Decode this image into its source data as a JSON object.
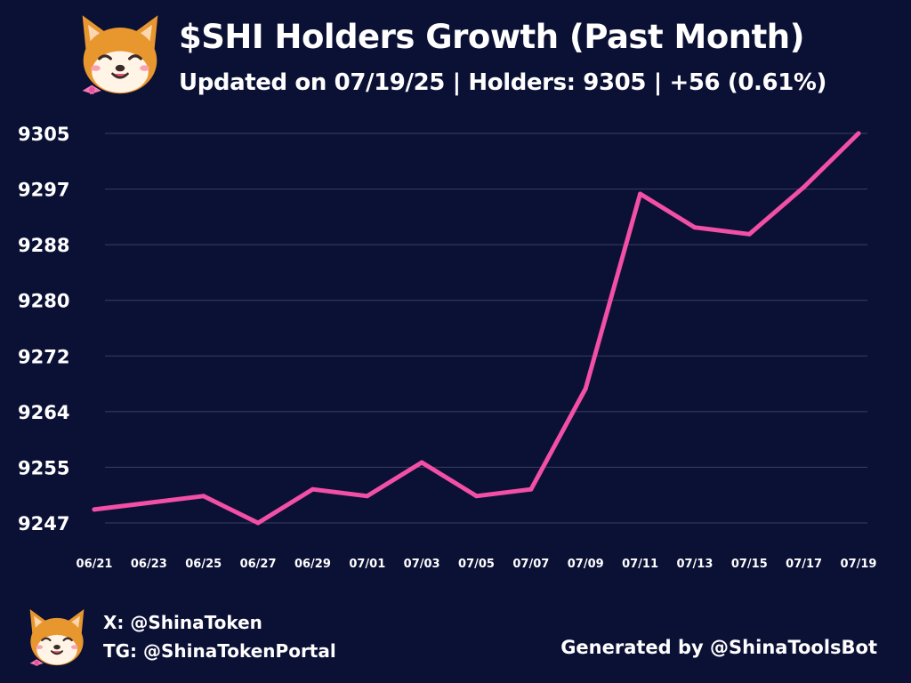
{
  "header": {
    "title": "$SHI Holders Growth (Past Month)",
    "subtitle": "Updated on 07/19/25 | Holders: 9305 | +56 (0.61%)"
  },
  "footer": {
    "x_handle": "X: @ShinaToken",
    "tg_handle": "TG: @ShinaTokenPortal",
    "generated_by": "Generated by @ShinaToolsBot"
  },
  "icons": {
    "logo": "shiba-inu-mascot-icon"
  },
  "colors": {
    "background": "#0b1035",
    "line": "#f24fa6",
    "grid": "#3a3f60",
    "text": "#ffffff"
  },
  "chart_data": {
    "type": "line",
    "title": "",
    "xlabel": "",
    "ylabel": "",
    "x": [
      "06/21",
      "06/25",
      "06/27",
      "06/29",
      "07/01",
      "07/03",
      "07/05",
      "07/07",
      "07/09",
      "07/11",
      "07/13",
      "07/15",
      "07/17",
      "07/19"
    ],
    "values": [
      9249,
      9251,
      9247,
      9252,
      9251,
      9256,
      9251,
      9252,
      9267,
      9296,
      9291,
      9290,
      9297,
      9305
    ],
    "x_tick_labels": [
      "06/21",
      "06/23",
      "06/25",
      "06/27",
      "06/29",
      "07/01",
      "07/03",
      "07/05",
      "07/07",
      "07/09",
      "07/11",
      "07/13",
      "07/15",
      "07/17",
      "07/19"
    ],
    "y_tick_labels": [
      "9247",
      "9255",
      "9264",
      "9272",
      "9280",
      "9288",
      "9297",
      "9305"
    ],
    "ylim": [
      9247,
      9305
    ],
    "grid": "horizontal",
    "legend": "none"
  }
}
